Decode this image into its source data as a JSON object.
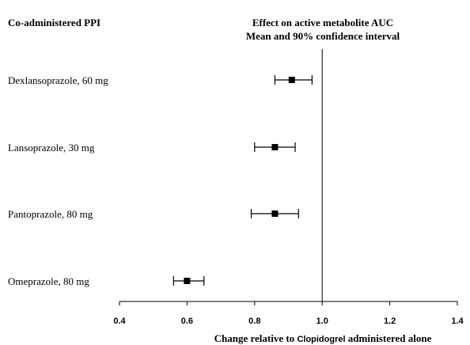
{
  "header": {
    "left_column": "Co-administered PPI",
    "right_title_line1": "Effect on active metabolite AUC",
    "right_title_line2": "Mean and 90% confidence interval"
  },
  "chart_data": {
    "type": "scatter",
    "subtype": "forest-plot",
    "title": "Effect on active metabolite AUC",
    "subtitle": "Mean and 90% confidence interval",
    "xlabel": {
      "prefix": "Change relative to ",
      "drug": "Clopidogrel",
      "suffix": " administered alone"
    },
    "ylabel": "Co-administered PPI",
    "xlim": [
      0.4,
      1.4
    ],
    "xticks": [
      "0.4",
      "0.6",
      "0.8",
      "1.0",
      "1.2",
      "1.4"
    ],
    "xtick_values": [
      0.4,
      0.6,
      0.8,
      1.0,
      1.2,
      1.4
    ],
    "reference_line": 1.0,
    "grid": false,
    "categories": [
      "Dexlansoprazole, 60 mg",
      "Lansoprazole, 30 mg",
      "Pantoprazole, 80 mg",
      "Omeprazole, 80 mg"
    ],
    "series": [
      {
        "mean": [
          0.91,
          0.86,
          0.86,
          0.6
        ],
        "ci_low": [
          0.86,
          0.8,
          0.79,
          0.56
        ],
        "ci_high": [
          0.97,
          0.92,
          0.93,
          0.65
        ]
      }
    ],
    "marker_color": "#000000"
  }
}
